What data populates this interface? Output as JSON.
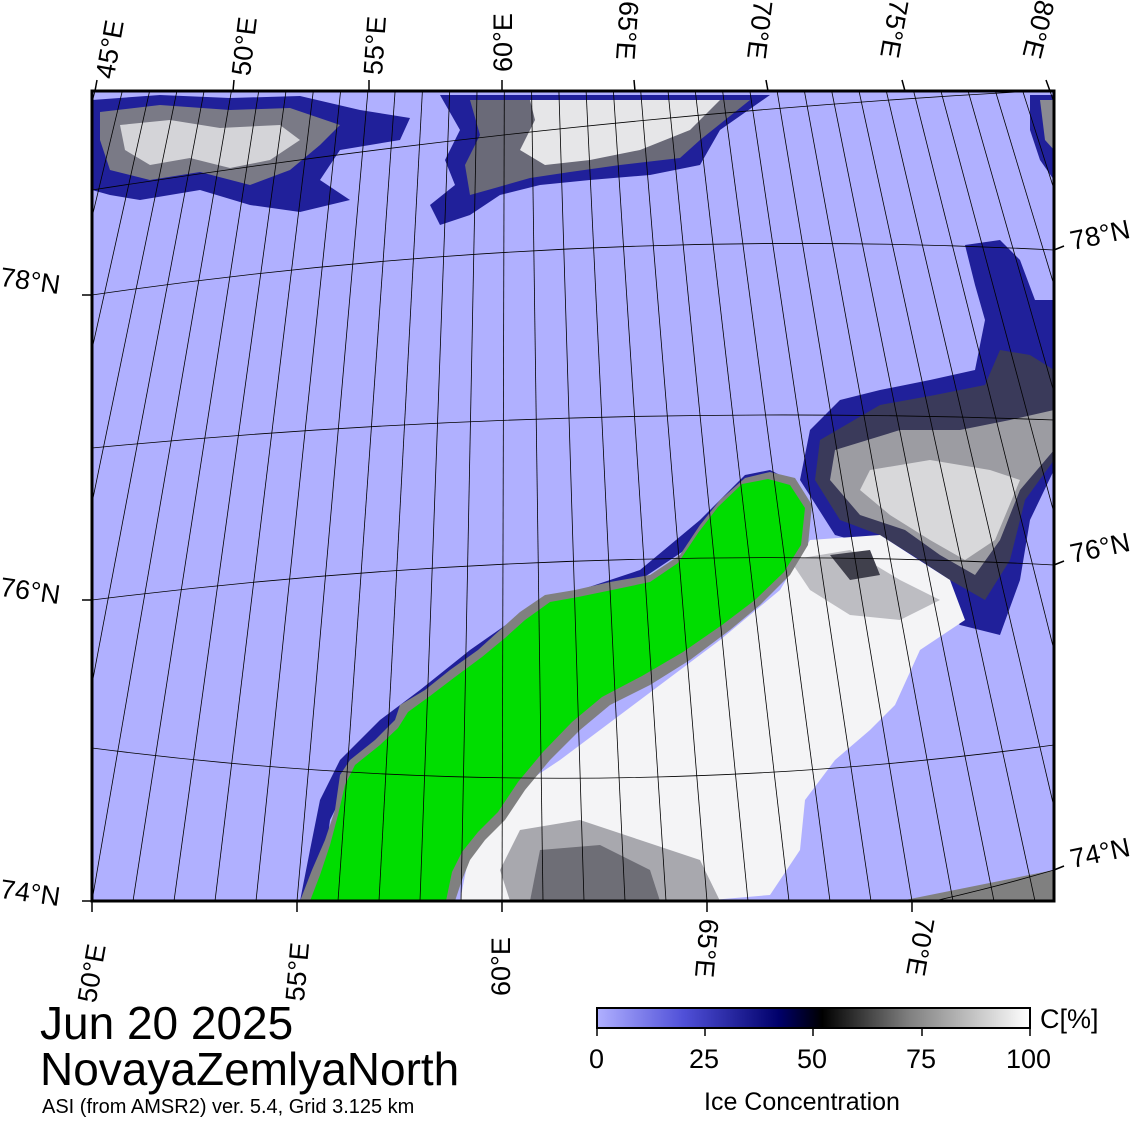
{
  "header": {
    "date": "Jun 20 2025",
    "region": "NovayaZemlyaNorth",
    "source": "ASI (from AMSR2) ver. 5.4,  Grid 3.125 km"
  },
  "map": {
    "top_lon_labels": [
      "45°E",
      "50°E",
      "55°E",
      "60°E",
      "65°E",
      "70°E",
      "75°E",
      "80°E"
    ],
    "bottom_lon_labels": [
      "50°E",
      "55°E",
      "60°E",
      "65°E",
      "70°E"
    ],
    "left_lat_labels": [
      "78°N",
      "76°N",
      "74°N"
    ],
    "right_lat_labels": [
      "78°N",
      "76°N",
      "74°N"
    ],
    "colors": {
      "open_water": "#b0b0ff",
      "land": "#00dd00",
      "coast": "#808080",
      "frame": "#000000"
    }
  },
  "colorbar": {
    "title": "Ice Concentration",
    "unit": "C[%]",
    "ticks": [
      "0",
      "25",
      "50",
      "75",
      "100"
    ],
    "stops": [
      "#b0b0ff",
      "#5050d8",
      "#00006a",
      "#000000",
      "#7f7f7f",
      "#ffffff"
    ]
  }
}
